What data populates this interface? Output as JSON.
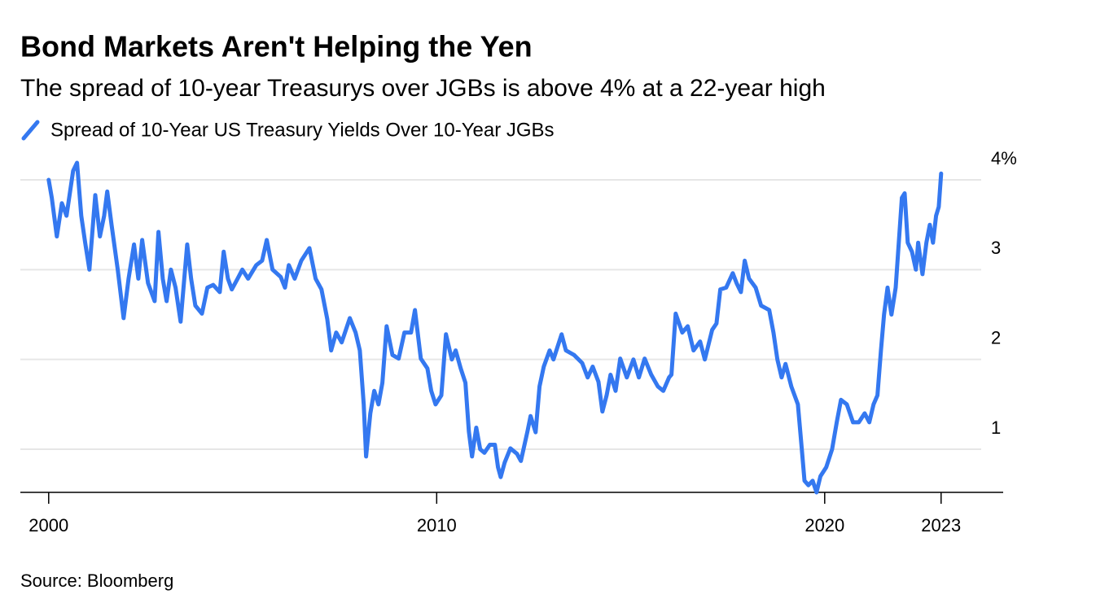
{
  "chart_data": {
    "type": "line",
    "title": "Bond Markets Aren't Helping the Yen",
    "subtitle": "The spread of 10-year Treasurys over JGBs is above 4% at a 22-year high",
    "source": "Source: Bloomberg",
    "x": [
      2000,
      2000.08,
      2000.21,
      2000.34,
      2000.46,
      2000.63,
      2000.73,
      2000.84,
      2000.94,
      2001.05,
      2001.2,
      2001.32,
      2001.43,
      2001.51,
      2001.62,
      2001.78,
      2001.93,
      2002.06,
      2002.2,
      2002.31,
      2002.41,
      2002.56,
      2002.73,
      2002.83,
      2002.94,
      2003.04,
      2003.15,
      2003.27,
      2003.4,
      2003.57,
      2003.67,
      2003.78,
      2003.95,
      2004.09,
      2004.24,
      2004.41,
      2004.51,
      2004.62,
      2004.72,
      2004.87,
      2004.99,
      2005.14,
      2005.35,
      2005.5,
      2005.62,
      2005.77,
      2005.98,
      2006.09,
      2006.19,
      2006.34,
      2006.51,
      2006.72,
      2006.88,
      2007.03,
      2007.18,
      2007.28,
      2007.41,
      2007.55,
      2007.76,
      2007.91,
      2008.02,
      2008.12,
      2008.18,
      2008.29,
      2008.39,
      2008.5,
      2008.6,
      2008.71,
      2008.86,
      2009.02,
      2009.17,
      2009.34,
      2009.44,
      2009.59,
      2009.76,
      2009.86,
      2009.97,
      2010.12,
      2010.24,
      2010.39,
      2010.49,
      2010.62,
      2010.74,
      2010.83,
      2010.91,
      2011.02,
      2011.12,
      2011.23,
      2011.37,
      2011.5,
      2011.58,
      2011.65,
      2011.75,
      2011.9,
      2012.07,
      2012.17,
      2012.34,
      2012.42,
      2012.55,
      2012.65,
      2012.76,
      2012.91,
      2013.01,
      2013.22,
      2013.33,
      2013.54,
      2013.75,
      2013.89,
      2014.02,
      2014.17,
      2014.27,
      2014.38,
      2014.48,
      2014.61,
      2014.73,
      2014.9,
      2015.07,
      2015.21,
      2015.36,
      2015.53,
      2015.7,
      2015.84,
      2015.99,
      2016.05,
      2016.16,
      2016.33,
      2016.47,
      2016.62,
      2016.79,
      2016.91,
      2017.1,
      2017.21,
      2017.31,
      2017.46,
      2017.63,
      2017.73,
      2017.84,
      2017.94,
      2018.05,
      2018.22,
      2018.36,
      2018.57,
      2018.68,
      2018.78,
      2018.89,
      2018.99,
      2019.14,
      2019.31,
      2019.41,
      2019.48,
      2019.58,
      2019.69,
      2019.79,
      2019.89,
      2020.04,
      2020.19,
      2020.31,
      2020.42,
      2020.57,
      2020.73,
      2020.88,
      2021.03,
      2021.15,
      2021.26,
      2021.36,
      2021.45,
      2021.53,
      2021.62,
      2021.72,
      2021.83,
      2021.91,
      2021.99,
      2022.06,
      2022.14,
      2022.25,
      2022.35,
      2022.41,
      2022.52,
      2022.62,
      2022.71,
      2022.79,
      2022.87,
      2022.94,
      2023
    ],
    "series": [
      {
        "name": "Spread of 10-Year US Treasury Yields Over 10-Year JGBs",
        "color": "#3478f0",
        "values": [
          4.0,
          3.8,
          3.37,
          3.74,
          3.6,
          4.1,
          4.19,
          3.6,
          3.3,
          3.0,
          3.83,
          3.37,
          3.6,
          3.87,
          3.5,
          3.0,
          2.46,
          2.9,
          3.28,
          2.9,
          3.33,
          2.85,
          2.65,
          3.42,
          2.9,
          2.65,
          3.0,
          2.8,
          2.42,
          3.28,
          2.9,
          2.6,
          2.51,
          2.8,
          2.83,
          2.75,
          3.2,
          2.9,
          2.78,
          2.9,
          3.0,
          2.9,
          3.05,
          3.1,
          3.33,
          3.0,
          2.92,
          2.8,
          3.05,
          2.9,
          3.1,
          3.24,
          2.9,
          2.78,
          2.45,
          2.1,
          2.3,
          2.19,
          2.46,
          2.3,
          2.1,
          1.5,
          0.92,
          1.4,
          1.65,
          1.5,
          1.74,
          2.37,
          2.05,
          2.01,
          2.3,
          2.3,
          2.55,
          2.01,
          1.9,
          1.65,
          1.5,
          1.6,
          2.28,
          2.0,
          2.1,
          1.9,
          1.74,
          1.2,
          0.92,
          1.24,
          1.0,
          0.96,
          1.05,
          1.05,
          0.8,
          0.69,
          0.85,
          1.01,
          0.95,
          0.87,
          1.2,
          1.37,
          1.19,
          1.7,
          1.92,
          2.1,
          2.0,
          2.28,
          2.1,
          2.05,
          1.96,
          1.8,
          1.92,
          1.75,
          1.42,
          1.6,
          1.83,
          1.65,
          2.01,
          1.8,
          2.0,
          1.8,
          2.01,
          1.83,
          1.7,
          1.65,
          1.8,
          1.83,
          2.51,
          2.3,
          2.37,
          2.1,
          2.2,
          2.0,
          2.33,
          2.4,
          2.78,
          2.8,
          2.96,
          2.85,
          2.75,
          3.1,
          2.9,
          2.8,
          2.6,
          2.55,
          2.3,
          2.0,
          1.8,
          1.95,
          1.7,
          1.5,
          1.0,
          0.65,
          0.6,
          0.65,
          0.52,
          0.7,
          0.8,
          1.0,
          1.3,
          1.55,
          1.5,
          1.3,
          1.3,
          1.4,
          1.3,
          1.5,
          1.6,
          2.1,
          2.5,
          2.8,
          2.5,
          2.8,
          3.3,
          3.8,
          3.85,
          3.3,
          3.2,
          3.0,
          3.3,
          2.95,
          3.3,
          3.5,
          3.3,
          3.6,
          3.7,
          4.07
        ]
      }
    ],
    "xlim": [
      1999.27,
      2024.6
    ],
    "xticks": [
      2000,
      2010,
      2020,
      2023
    ],
    "ylim": [
      0.52,
      4.25
    ],
    "yticks": [
      1,
      2,
      3,
      {
        "value": 4,
        "label": "4%"
      }
    ],
    "grid": true
  }
}
